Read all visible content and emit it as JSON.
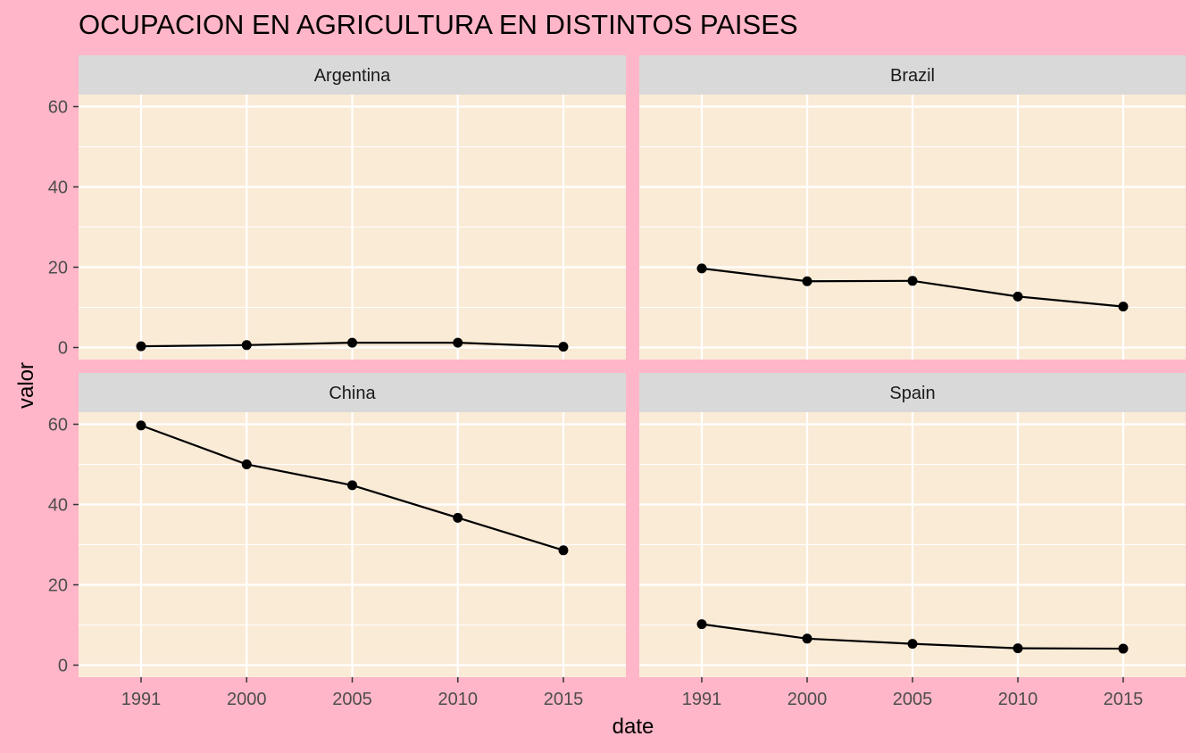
{
  "chart_data": {
    "type": "line",
    "title": "OCUPACION EN AGRICULTURA EN DISTINTOS PAISES",
    "xlabel": "date",
    "ylabel": "valor",
    "x": [
      "1991",
      "2000",
      "2005",
      "2010",
      "2015"
    ],
    "ylim": [
      -3,
      63
    ],
    "yticks": [
      0,
      20,
      40,
      60
    ],
    "grid": true,
    "legend": "none",
    "colors": {
      "page_background": "#ffb6c8",
      "panel_background": "#faebd7",
      "strip_background": "#d9d9d9",
      "line": "#000000",
      "grid": "#ffffff"
    },
    "panels": [
      {
        "name": "Argentina",
        "values": [
          0.3,
          0.6,
          1.2,
          1.2,
          0.2
        ]
      },
      {
        "name": "Brazil",
        "values": [
          19.7,
          16.5,
          16.6,
          12.7,
          10.2
        ]
      },
      {
        "name": "China",
        "values": [
          59.7,
          50.0,
          44.8,
          36.7,
          28.6
        ]
      },
      {
        "name": "Spain",
        "values": [
          10.2,
          6.6,
          5.3,
          4.2,
          4.1
        ]
      }
    ]
  }
}
